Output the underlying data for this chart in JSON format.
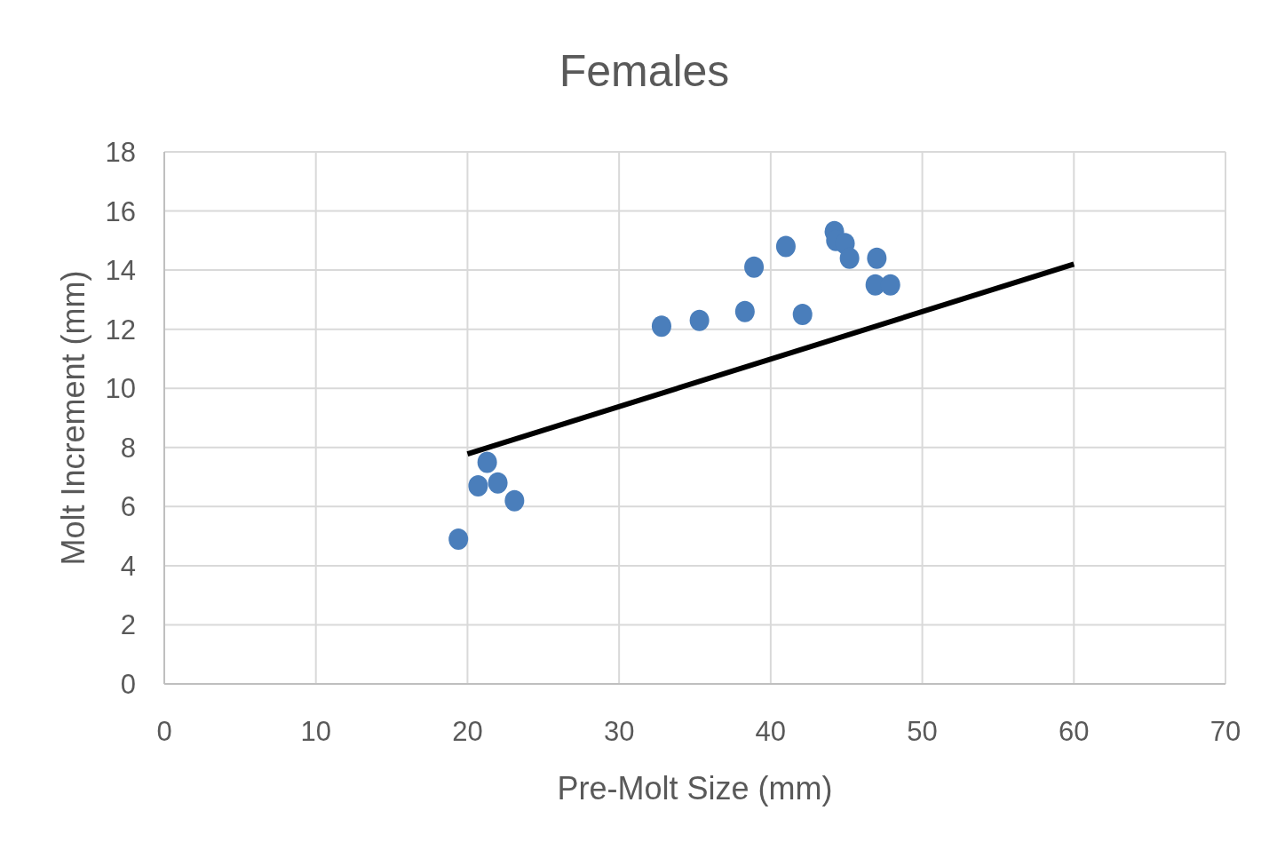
{
  "chart_data": {
    "type": "scatter",
    "title": "Females",
    "xlabel": "Pre-Molt Size (mm)",
    "ylabel": "Molt Increment (mm)",
    "xlim": [
      0,
      70
    ],
    "xticks": [
      0,
      10,
      20,
      30,
      40,
      50,
      60,
      70
    ],
    "ylim": [
      0,
      18
    ],
    "yticks": [
      0,
      2,
      4,
      6,
      8,
      10,
      12,
      14,
      16,
      18
    ],
    "grid": true,
    "marker": "circle",
    "series": [
      {
        "color": "#4a7ebb",
        "x": [
          19.4,
          20.7,
          21.3,
          22.0,
          23.1,
          32.8,
          35.3,
          38.3,
          38.9,
          41.0,
          42.1,
          44.2,
          44.3,
          44.9,
          45.2,
          47.0,
          46.9,
          47.9
        ],
        "values": [
          4.9,
          6.7,
          7.5,
          6.8,
          6.2,
          12.1,
          12.3,
          12.6,
          14.1,
          14.8,
          12.5,
          15.3,
          15.0,
          14.9,
          14.4,
          14.4,
          13.5,
          13.5
        ]
      },
      {
        "type": "line",
        "color": "#000000",
        "x": [
          20,
          60
        ],
        "values": [
          7.78,
          14.2
        ],
        "marker": "none",
        "line_style": "solid"
      }
    ]
  }
}
